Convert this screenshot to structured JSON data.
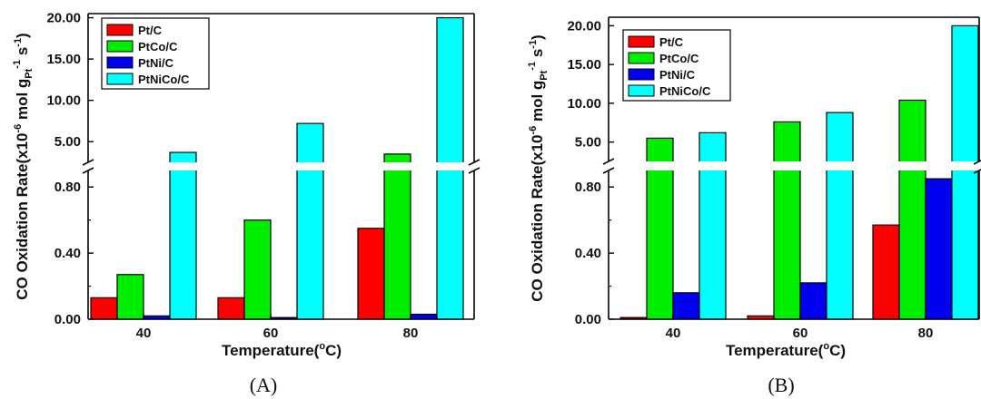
{
  "chart_data": [
    {
      "panel": "(A)",
      "type": "bar",
      "categories": [
        "40",
        "60",
        "80"
      ],
      "xlabel": {
        "main": "Temperature(",
        "sup": "o",
        "end": "C)"
      },
      "ylabel": {
        "main": "CO Oxidation Rate(x10",
        "sup1": "-6",
        "mid": " mol g",
        "sub": "Pt",
        "sup2": "-1",
        "mid2": " s",
        "sup3": "-1",
        "end": ")"
      },
      "y_break": true,
      "lower_range": [
        0,
        0.9
      ],
      "lower_ticks": [
        "0.00",
        "0.40",
        "0.80"
      ],
      "upper_range": [
        2.5,
        20.5
      ],
      "upper_ticks": [
        "5.00",
        "10.00",
        "15.00",
        "20.00"
      ],
      "legend_position": "top-left",
      "series": [
        {
          "name": "Pt/C",
          "color": "#ff0000",
          "values": [
            0.13,
            0.13,
            0.55
          ]
        },
        {
          "name": "PtCo/C",
          "color": "#00ee00",
          "values": [
            0.27,
            0.6,
            3.5
          ]
        },
        {
          "name": "PtNi/C",
          "color": "#0000ee",
          "values": [
            0.02,
            0.01,
            0.03
          ]
        },
        {
          "name": "PtNiCo/C",
          "color": "#00ffff",
          "values": [
            3.7,
            7.2,
            20.0
          ]
        }
      ]
    },
    {
      "panel": "(B)",
      "type": "bar",
      "categories": [
        "40",
        "60",
        "80"
      ],
      "xlabel": {
        "main": "Temperature(",
        "sup": "o",
        "end": "C)"
      },
      "ylabel": {
        "main": "CO Oxidation Rate(x10",
        "sup1": "-6",
        "mid": " mol g",
        "sub": "Pt",
        "sup2": "-1",
        "mid2": " s",
        "sup3": "-1",
        "end": ")"
      },
      "y_break": true,
      "lower_range": [
        0,
        0.9
      ],
      "lower_ticks": [
        "0.00",
        "0.40",
        "0.80"
      ],
      "upper_range": [
        2.5,
        20.5
      ],
      "upper_ticks": [
        "5.00",
        "10.00",
        "15.00",
        "20.00"
      ],
      "legend_position": "top-left",
      "series": [
        {
          "name": "Pt/C",
          "color": "#ff0000",
          "values": [
            0.01,
            0.02,
            0.57
          ]
        },
        {
          "name": "PtCo/C",
          "color": "#00ee00",
          "values": [
            5.5,
            7.6,
            10.4
          ]
        },
        {
          "name": "PtNi/C",
          "color": "#0000ee",
          "values": [
            0.16,
            0.22,
            0.85
          ]
        },
        {
          "name": "PtNiCo/C",
          "color": "#00ffff",
          "values": [
            6.2,
            8.8,
            20.0
          ]
        }
      ]
    }
  ]
}
